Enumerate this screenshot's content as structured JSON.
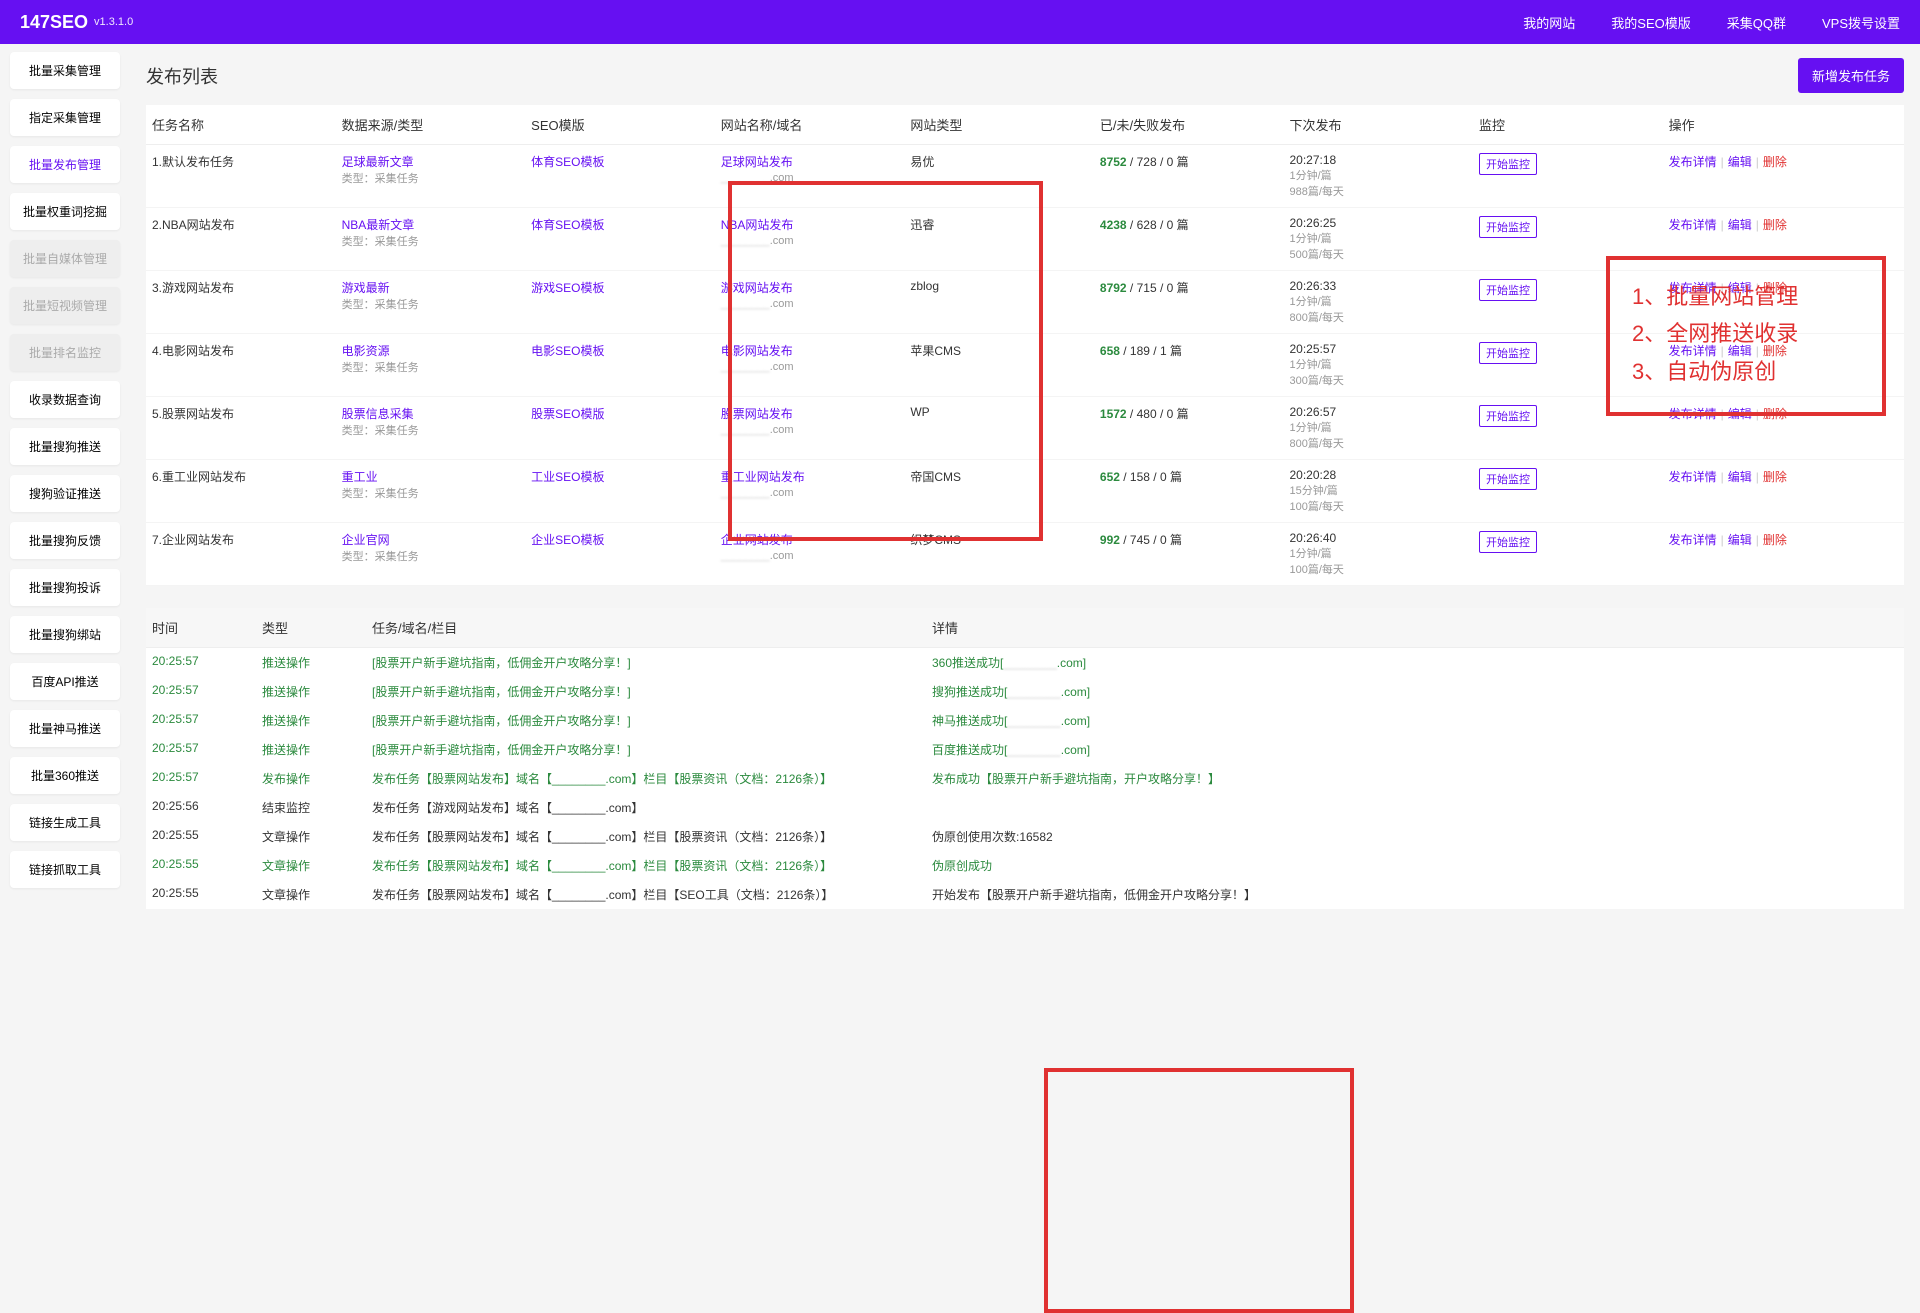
{
  "header": {
    "logo": "147SEO",
    "version": "v1.3.1.0",
    "nav": [
      "我的网站",
      "我的SEO模版",
      "采集QQ群",
      "VPS拨号设置"
    ]
  },
  "sidebar": [
    {
      "label": "批量采集管理",
      "state": ""
    },
    {
      "label": "指定采集管理",
      "state": ""
    },
    {
      "label": "批量发布管理",
      "state": "active"
    },
    {
      "label": "批量权重词挖掘",
      "state": ""
    },
    {
      "label": "批量自媒体管理",
      "state": "disabled"
    },
    {
      "label": "批量短视频管理",
      "state": "disabled"
    },
    {
      "label": "批量排名监控",
      "state": "disabled"
    },
    {
      "label": "收录数据查询",
      "state": ""
    },
    {
      "label": "批量搜狗推送",
      "state": ""
    },
    {
      "label": "搜狗验证推送",
      "state": ""
    },
    {
      "label": "批量搜狗反馈",
      "state": ""
    },
    {
      "label": "批量搜狗投诉",
      "state": ""
    },
    {
      "label": "批量搜狗绑站",
      "state": ""
    },
    {
      "label": "百度API推送",
      "state": ""
    },
    {
      "label": "批量神马推送",
      "state": ""
    },
    {
      "label": "批量360推送",
      "state": ""
    },
    {
      "label": "链接生成工具",
      "state": ""
    },
    {
      "label": "链接抓取工具",
      "state": ""
    }
  ],
  "page": {
    "title": "发布列表",
    "add_btn": "新增发布任务"
  },
  "columns": [
    "任务名称",
    "数据来源/类型",
    "SEO模版",
    "网站名称/域名",
    "网站类型",
    "已/未/失败发布",
    "下次发布",
    "监控",
    "操作"
  ],
  "col_widths": [
    "110px",
    "110px",
    "110px",
    "110px",
    "110px",
    "110px",
    "110px",
    "110px",
    "140px"
  ],
  "source_sub": "类型：采集任务",
  "mon_btn": "开始监控",
  "ops": {
    "detail": "发布详情",
    "edit": "编辑",
    "del": "删除"
  },
  "rows": [
    {
      "name": "1.默认发布任务",
      "source": "足球最新文章",
      "seo": "体育SEO模板",
      "site": "足球网站发布",
      "domain": ".com",
      "type": "易优",
      "done": "8752",
      "rest": " / 728 / 0 篇",
      "next": "20:27:18",
      "sub1": "1分钟/篇",
      "sub2": "988篇/每天"
    },
    {
      "name": "2.NBA网站发布",
      "source": "NBA最新文章",
      "seo": "体育SEO模板",
      "site": "NBA网站发布",
      "domain": ".com",
      "type": "迅睿",
      "done": "4238",
      "rest": " / 628 / 0 篇",
      "next": "20:26:25",
      "sub1": "1分钟/篇",
      "sub2": "500篇/每天"
    },
    {
      "name": "3.游戏网站发布",
      "source": "游戏最新",
      "seo": "游戏SEO模板",
      "site": "游戏网站发布",
      "domain": ".com",
      "type": "zblog",
      "done": "8792",
      "rest": " / 715 / 0 篇",
      "next": "20:26:33",
      "sub1": "1分钟/篇",
      "sub2": "800篇/每天"
    },
    {
      "name": "4.电影网站发布",
      "source": "电影资源",
      "seo": "电影SEO模板",
      "site": "电影网站发布",
      "domain": ".com",
      "type": "苹果CMS",
      "done": "658",
      "rest": " / 189 / 1 篇",
      "next": "20:25:57",
      "sub1": "1分钟/篇",
      "sub2": "300篇/每天"
    },
    {
      "name": "5.股票网站发布",
      "source": "股票信息采集",
      "seo": "股票SEO模版",
      "site": "股票网站发布",
      "domain": ".com",
      "type": "WP",
      "done": "1572",
      "rest": " / 480 / 0 篇",
      "next": "20:26:57",
      "sub1": "1分钟/篇",
      "sub2": "800篇/每天"
    },
    {
      "name": "6.重工业网站发布",
      "source": "重工业",
      "seo": "工业SEO模板",
      "site": "重工业网站发布",
      "domain": ".com",
      "type": "帝国CMS",
      "done": "652",
      "rest": " / 158 / 0 篇",
      "next": "20:20:28",
      "sub1": "15分钟/篇",
      "sub2": "100篇/每天"
    },
    {
      "name": "7.企业网站发布",
      "source": "企业官网",
      "seo": "企业SEO模板",
      "site": "企业网站发布",
      "domain": ".com",
      "type": "织梦CMS",
      "done": "992",
      "rest": " / 745 / 0 篇",
      "next": "20:26:40",
      "sub1": "1分钟/篇",
      "sub2": "100篇/每天"
    }
  ],
  "annotation": {
    "line1": "1、批量网站管理",
    "line2": "2、全网推送收录",
    "line3": "3、自动伪原创"
  },
  "log_columns": [
    "时间",
    "类型",
    "任务/域名/栏目",
    "详情"
  ],
  "log_col_widths": [
    "110px",
    "110px",
    "560px",
    "auto"
  ],
  "logs": [
    {
      "time": "20:25:57",
      "type": "推送操作",
      "task": "[股票开户新手避坑指南，低佣金开户攻略分享！]",
      "detail": "360推送成功[",
      "detail2": ".com]",
      "g": true
    },
    {
      "time": "20:25:57",
      "type": "推送操作",
      "task": "[股票开户新手避坑指南，低佣金开户攻略分享！]",
      "detail": "搜狗推送成功[",
      "detail2": ".com]",
      "g": true
    },
    {
      "time": "20:25:57",
      "type": "推送操作",
      "task": "[股票开户新手避坑指南，低佣金开户攻略分享！]",
      "detail": "神马推送成功[",
      "detail2": ".com]",
      "g": true
    },
    {
      "time": "20:25:57",
      "type": "推送操作",
      "task": "[股票开户新手避坑指南，低佣金开户攻略分享！]",
      "detail": "百度推送成功[",
      "detail2": ".com]",
      "g": true
    },
    {
      "time": "20:25:57",
      "type": "发布操作",
      "task": "发布任务【股票网站发布】域名【________.com】栏目【股票资讯（文档：2126条）】",
      "detail": "发布成功【股票开户新手避坑指南，开户攻略分享！】",
      "detail2": "",
      "g": true
    },
    {
      "time": "20:25:56",
      "type": "结束监控",
      "task": "发布任务【游戏网站发布】域名【________.com】",
      "detail": "",
      "detail2": "",
      "g": false
    },
    {
      "time": "20:25:55",
      "type": "文章操作",
      "task": "发布任务【股票网站发布】域名【________.com】栏目【股票资讯（文档：2126条）】",
      "detail": "伪原创使用次数:16582",
      "detail2": "",
      "g": false
    },
    {
      "time": "20:25:55",
      "type": "文章操作",
      "task": "发布任务【股票网站发布】域名【________.com】栏目【股票资讯（文档：2126条）】",
      "detail": "伪原创成功",
      "detail2": "",
      "g": true
    },
    {
      "time": "20:25:55",
      "type": "文章操作",
      "task": "发布任务【股票网站发布】域名【________.com】栏目【SEO工具（文档：2126条）】",
      "detail": "开始发布【股票开户新手避坑指南，低佣金开户攻略分享！】",
      "detail2": "",
      "g": false
    }
  ]
}
